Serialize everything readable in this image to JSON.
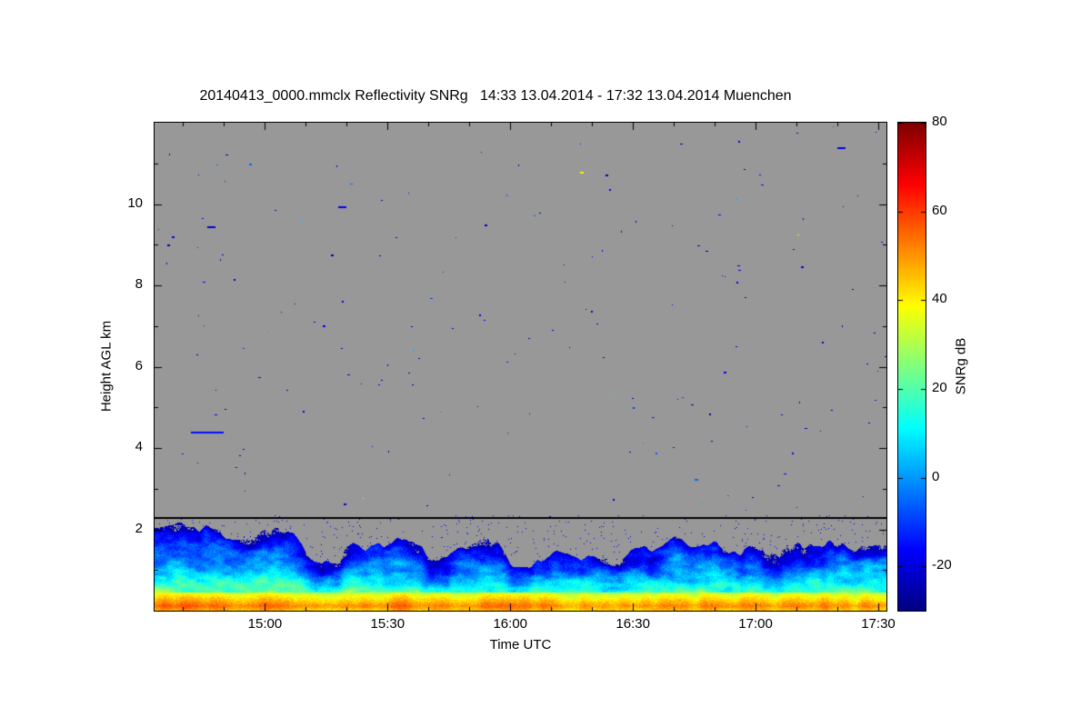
{
  "colors": {
    "background": "#ffffff",
    "frame": "#000000",
    "no_signal_gray": "#989898"
  },
  "chart_data": {
    "type": "heatmap",
    "title": "20140413_0000.mmclx Reflectivity SNRg   14:33 13.04.2014 - 17:32 13.04.2014 Muenchen",
    "station": "Muenchen",
    "date": "13.04.2014",
    "time_start": "14:33",
    "time_end": "17:32",
    "xlabel": "Time UTC",
    "ylabel": "Height AGL km",
    "x_ticks": [
      "15:00",
      "15:30",
      "16:00",
      "16:30",
      "17:00",
      "17:30"
    ],
    "x_tick_minutes": [
      900,
      930,
      960,
      990,
      1020,
      1050
    ],
    "x_range_minutes": [
      873,
      1052
    ],
    "y_ticks": [
      2,
      4,
      6,
      8,
      10
    ],
    "y_range_km": [
      0,
      12
    ],
    "grid": false,
    "no_signal_color": "#989898",
    "horizontal_line_km": 2.3,
    "colorbar": {
      "label": "SNRg dB",
      "ticks": [
        80,
        60,
        40,
        20,
        0,
        -20
      ],
      "range_db": [
        -30,
        80
      ],
      "colormap": "jet",
      "position": "right"
    },
    "sample_step_min": 10,
    "boundary_layer": {
      "top_km": [
        1.9,
        2.1,
        1.7,
        2.05,
        1.15,
        1.5,
        1.85,
        1.3,
        1.6,
        1.2,
        1.35,
        1.15,
        1.5,
        1.6,
        1.5,
        1.4,
        1.6,
        1.45,
        1.55
      ],
      "snr_db_range": [
        -27,
        40
      ]
    },
    "surface_layer": {
      "peak_snr_db": [
        55,
        58,
        52,
        57,
        50,
        53,
        55,
        50,
        54,
        56,
        50,
        48,
        52,
        50,
        53,
        50,
        52,
        50,
        51
      ],
      "depth_km": 0.45,
      "peak_height_km": 0.12
    },
    "speckle": {
      "seed": 20140413,
      "count": 170,
      "band_top_km": 2.35,
      "band_prob": 0.012,
      "snr_db_range": [
        -26,
        6
      ]
    },
    "notable_points": [
      {
        "time_min": 882,
        "height_km": 4.4,
        "snr_db": -15,
        "dur_min": 8
      },
      {
        "time_min": 886,
        "height_km": 9.45,
        "snr_db": -20,
        "dur_min": 2
      },
      {
        "time_min": 918,
        "height_km": 9.95,
        "snr_db": -18,
        "dur_min": 2
      },
      {
        "time_min": 977,
        "height_km": 10.8,
        "snr_db": 40,
        "dur_min": 1
      },
      {
        "time_min": 1005,
        "height_km": 3.25,
        "snr_db": -5,
        "dur_min": 1
      },
      {
        "time_min": 1040,
        "height_km": 11.4,
        "snr_db": -18,
        "dur_min": 2
      }
    ]
  }
}
